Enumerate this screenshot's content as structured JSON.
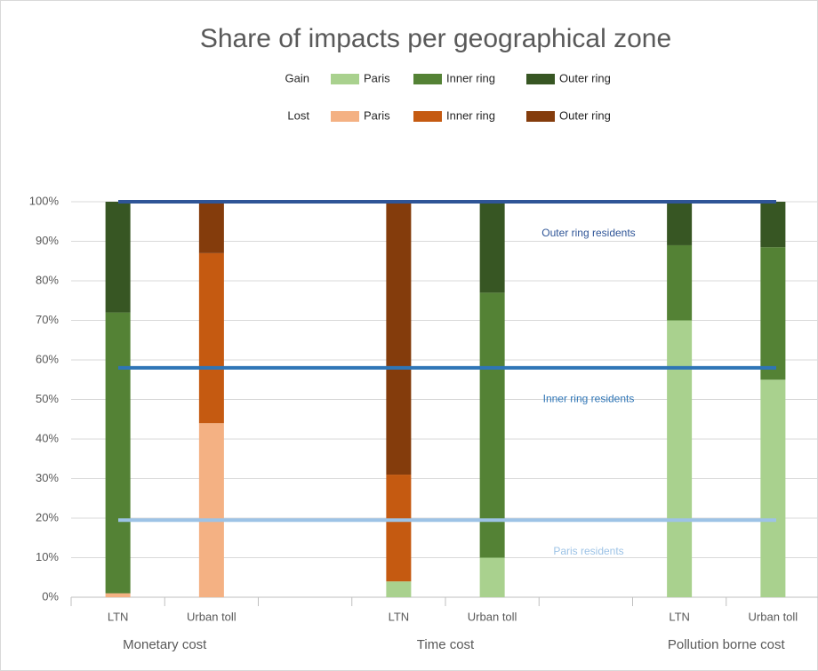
{
  "chart_data": {
    "type": "stacked_bar",
    "title": "Share of impacts per geographical zone",
    "legend_groups": [
      "Gain",
      "Lost"
    ],
    "categories": [
      "LTN",
      "Urban toll",
      null,
      "LTN",
      "Urban toll",
      null,
      "LTN",
      "Urban toll"
    ],
    "groups": [
      "Monetary cost",
      "Time cost",
      "Pollution borne cost"
    ],
    "series": [
      {
        "name": "Paris",
        "color": "#a9d18e",
        "values": [
          null,
          null,
          null,
          4,
          10,
          null,
          70,
          55
        ]
      },
      {
        "name": "Inner ring",
        "color": "#548235",
        "values": [
          71,
          null,
          null,
          null,
          67,
          null,
          19,
          33.5
        ]
      },
      {
        "name": "Outer ring",
        "color": "#375623",
        "values": [
          28,
          null,
          null,
          null,
          23,
          null,
          11,
          11.5
        ]
      },
      {
        "name": "Paris",
        "color": "#f4b183",
        "values": [
          1,
          44,
          null,
          null,
          null,
          null,
          null,
          null
        ]
      },
      {
        "name": "Inner ring",
        "color": "#c55a11",
        "values": [
          null,
          43,
          null,
          27,
          null,
          null,
          null,
          null
        ]
      },
      {
        "name": "Outer ring",
        "color": "#843c0c",
        "values": [
          null,
          13,
          null,
          69,
          null,
          null,
          null,
          null
        ]
      }
    ],
    "reference_lines": [
      {
        "label": "Outer ring residents",
        "value": 100,
        "color": "#2f5597"
      },
      {
        "label": "Inner ring residents",
        "value": 58,
        "color": "#2e75b6"
      },
      {
        "label": "Paris residents",
        "value": 19.5,
        "color": "#9dc3e6"
      }
    ],
    "ylim": [
      0,
      100
    ],
    "yticks": [
      {
        "value": 0,
        "label": "0%"
      },
      {
        "value": 10,
        "label": "10%"
      },
      {
        "value": 20,
        "label": "20%"
      },
      {
        "value": 30,
        "label": "30%"
      },
      {
        "value": 40,
        "label": "40%"
      },
      {
        "value": 50,
        "label": "50%"
      },
      {
        "value": 60,
        "label": "60%"
      },
      {
        "value": 70,
        "label": "70%"
      },
      {
        "value": 80,
        "label": "80%"
      },
      {
        "value": 90,
        "label": "90%"
      },
      {
        "value": 100,
        "label": "100%"
      }
    ],
    "grid": true
  }
}
